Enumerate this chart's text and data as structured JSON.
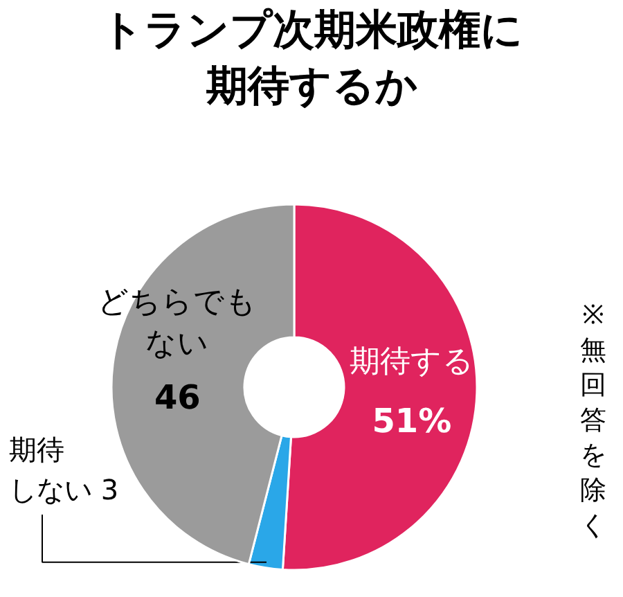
{
  "chart_data": {
    "type": "donut",
    "title": "トランプ次期米政権に期待するか",
    "categories": [
      "期待する",
      "期待しない",
      "どちらでもない"
    ],
    "values": [
      51,
      3,
      46
    ],
    "colors": [
      "#e0245e",
      "#2aa7e8",
      "#9b9b9b"
    ],
    "value_labels": [
      "51%",
      "3",
      "46"
    ],
    "annotations": [
      "※無回答を除く"
    ]
  }
}
